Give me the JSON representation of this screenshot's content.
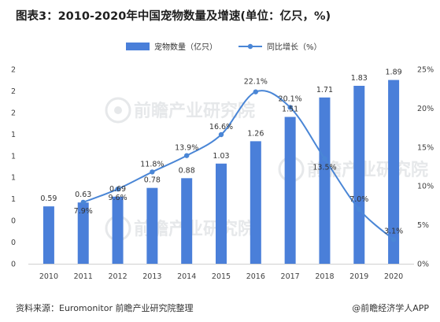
{
  "title": "图表3：2010-2020年中国宠物数量及增速(单位：亿只，%)",
  "source": "资料来源：Euromonitor 前瞻产业研究院整理",
  "brand": "@前瞻经济学人APP",
  "colors": {
    "bar": "#4a7fd9",
    "line": "#4a86d6",
    "axis": "#d0d0d0",
    "watermark": "#d3d6da"
  },
  "watermark": {
    "icon": "qianzhan-logo-icon",
    "text": "前瞻产业研究院"
  },
  "chart_data": {
    "type": "bar",
    "categories": [
      "2010",
      "2011",
      "2012",
      "2013",
      "2014",
      "2015",
      "2016",
      "2017",
      "2018",
      "2019",
      "2020"
    ],
    "series": [
      {
        "name": "宠物数量（亿只）",
        "type": "bar",
        "axis": "left",
        "values": [
          0.59,
          0.63,
          0.69,
          0.78,
          0.88,
          1.03,
          1.26,
          1.51,
          1.71,
          1.83,
          1.89
        ],
        "labels": [
          "0.59",
          "0.63",
          "0.69",
          "0.78",
          "0.88",
          "1.03",
          "1.26",
          "1.51",
          "1.71",
          "1.83",
          "1.89"
        ]
      },
      {
        "name": "同比增长（%）",
        "type": "line",
        "axis": "right",
        "values": [
          null,
          7.9,
          9.6,
          11.8,
          13.9,
          16.6,
          22.1,
          20.1,
          13.5,
          7.0,
          3.1
        ],
        "labels": [
          "",
          "7.9%",
          "9.6%",
          "11.8%",
          "13.9%",
          "16.6%",
          "22.1%",
          "20.1%",
          "13.5%",
          "7.0%",
          "3.1%"
        ]
      }
    ],
    "y_left": {
      "ylim": [
        0,
        2
      ],
      "tick_labels": [
        "0",
        "0",
        "0",
        "1",
        "1",
        "1",
        "1",
        "2",
        "2",
        "2"
      ]
    },
    "y_right": {
      "ylim": [
        0,
        25
      ],
      "tick_labels": [
        "0%",
        "5%",
        "10%",
        "15%",
        "20%",
        "25%"
      ]
    },
    "legend_position": "top-center",
    "grid": false
  }
}
